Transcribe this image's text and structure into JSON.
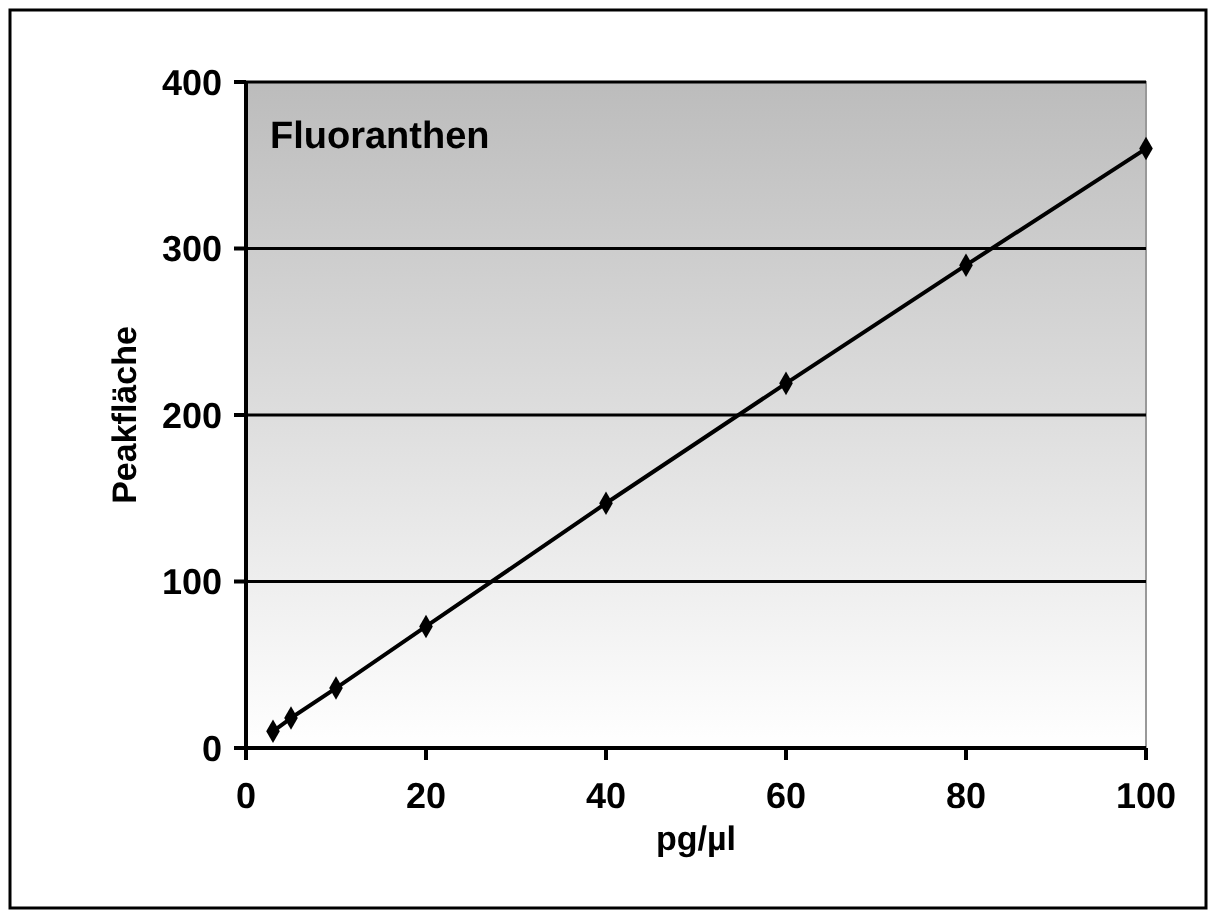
{
  "chart_data": {
    "type": "line",
    "title": "Fluoranthen",
    "xlabel": "pg/µl",
    "ylabel": "Peakfläche",
    "x": [
      3,
      5,
      10,
      20,
      40,
      60,
      80,
      100
    ],
    "series": [
      {
        "color": "#000000",
        "values": [
          10,
          18,
          36,
          73,
          147,
          219,
          290,
          360
        ]
      }
    ],
    "xlim": [
      0,
      100
    ],
    "xticks": [
      0,
      20,
      40,
      60,
      80,
      100
    ],
    "ylim": [
      0,
      400
    ],
    "yticks": [
      0,
      100,
      200,
      300,
      400
    ],
    "grid": "y",
    "marker": "diamond",
    "line_style": "solid"
  }
}
